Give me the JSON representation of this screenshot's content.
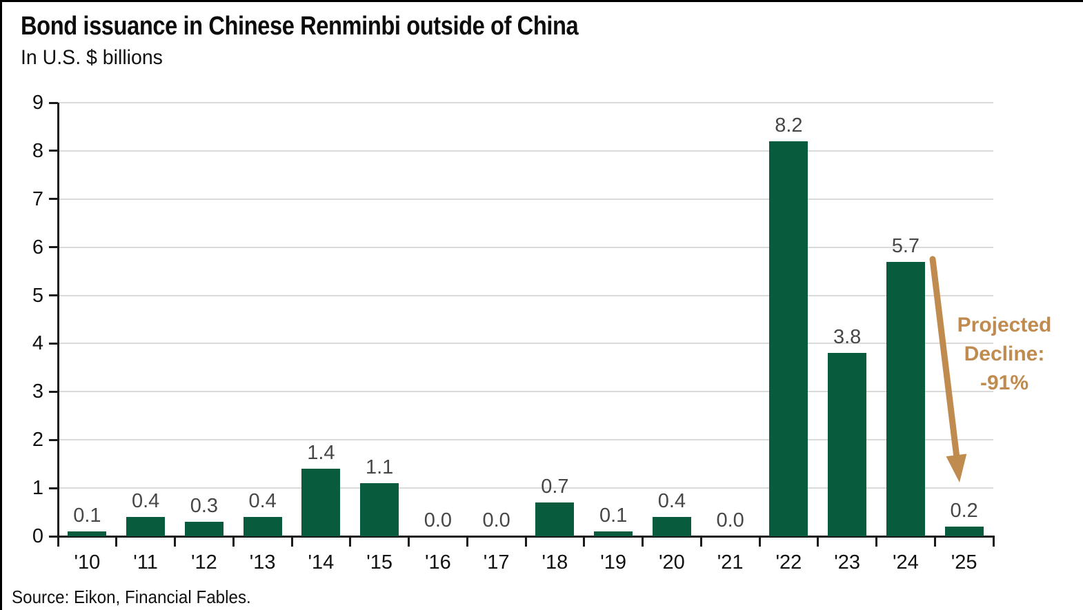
{
  "header": {
    "title": "Bond issuance in Chinese Renminbi outside of China",
    "subtitle": "In U.S. $ billions"
  },
  "footer": {
    "source": "Source: Eikon, Financial Fables."
  },
  "annotation": {
    "line1": "Projected",
    "line2": "Decline:",
    "line3": "-91%"
  },
  "colors": {
    "bar": "#085c3d",
    "annotation": "#bf8b4f",
    "grid": "#dadada",
    "axis": "#1a1a1a",
    "data_label": "#474747",
    "text": "#111111"
  },
  "chart_data": {
    "type": "bar",
    "title": "Bond issuance in Chinese Renminbi outside of China",
    "subtitle": "In U.S. $ billions",
    "categories": [
      "'10",
      "'11",
      "'12",
      "'13",
      "'14",
      "'15",
      "'16",
      "'17",
      "'18",
      "'19",
      "'20",
      "'21",
      "'22",
      "'23",
      "'24",
      "'25"
    ],
    "values": [
      0.1,
      0.4,
      0.3,
      0.4,
      1.4,
      1.1,
      0.0,
      0.0,
      0.7,
      0.1,
      0.4,
      0.0,
      8.2,
      3.8,
      5.7,
      0.2
    ],
    "data_labels": [
      "0.1",
      "0.4",
      "0.3",
      "0.4",
      "1.4",
      "1.1",
      "0.0",
      "0.0",
      "0.7",
      "0.1",
      "0.4",
      "0.0",
      "8.2",
      "3.8",
      "5.7",
      "0.2"
    ],
    "xlabel": "",
    "ylabel": "In U.S. $ billions",
    "ylim": [
      0,
      9
    ],
    "yticks": [
      0,
      1,
      2,
      3,
      4,
      5,
      6,
      7,
      8,
      9
    ],
    "grid": true,
    "legend": false,
    "annotation": {
      "text": "Projected Decline: -91%",
      "value": "-91%"
    },
    "source": "Source: Eikon, Financial Fables."
  }
}
